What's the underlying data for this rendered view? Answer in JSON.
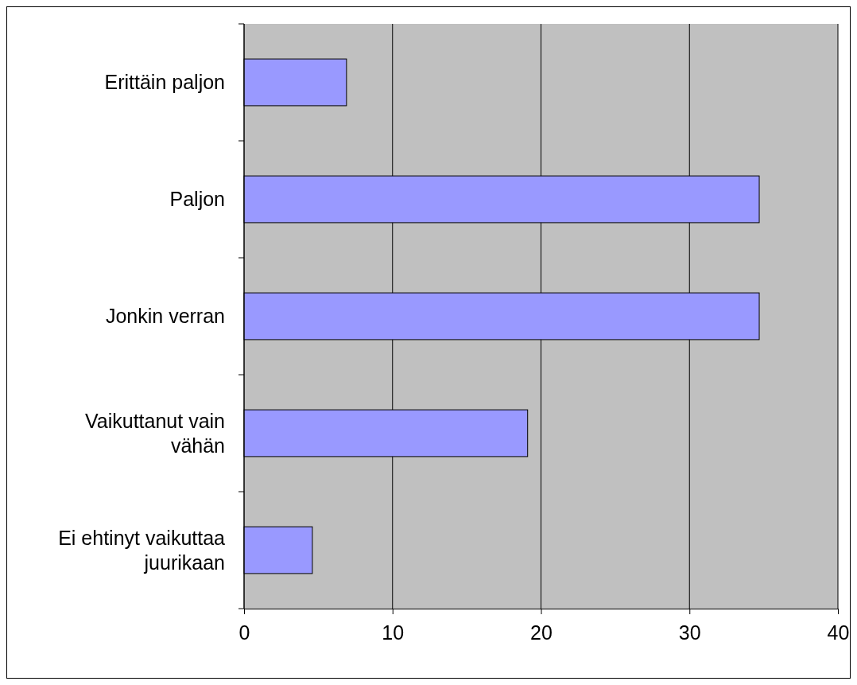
{
  "chart_data": {
    "type": "bar",
    "orientation": "horizontal",
    "categories": [
      "Erittäin paljon",
      "Paljon",
      "Jonkin verran",
      "Vaikuttanut vain vähän",
      "Ei ehtinyt vaikuttaa juurikaan"
    ],
    "values": [
      6.9,
      34.7,
      34.7,
      19.1,
      4.6
    ],
    "color": "#9999ff",
    "xlim": [
      0,
      40
    ],
    "xticks": [
      0,
      10,
      20,
      30,
      40
    ],
    "grid": "x"
  }
}
